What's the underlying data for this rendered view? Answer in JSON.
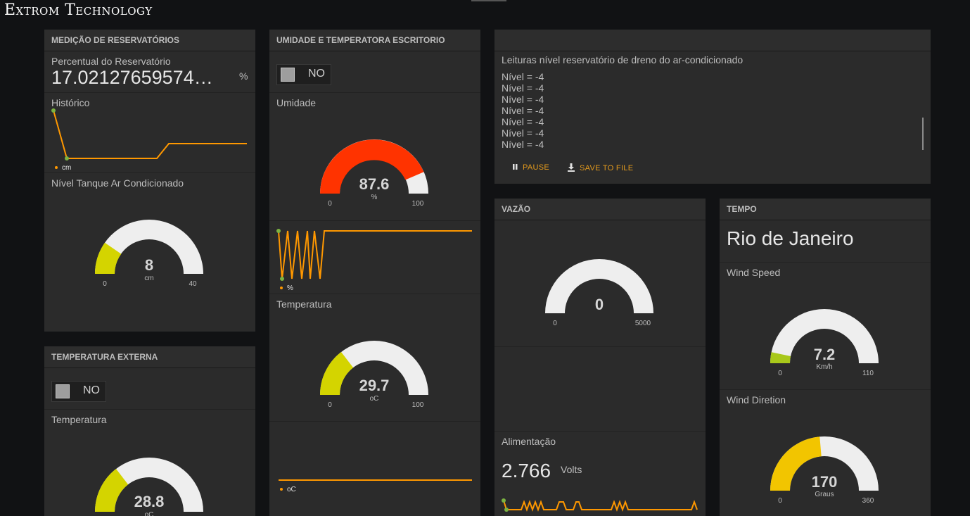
{
  "app": {
    "title": "Extrom Technology"
  },
  "colors": {
    "accent": "#ff9800",
    "red": "#ff3300",
    "yellow": "#d4d400",
    "gold": "#f2c500",
    "lime": "#a8c81a",
    "gauge_bg": "#eeeeee"
  },
  "reservatorios": {
    "header": "Medição de reservatórios",
    "percent_label": "Percentual do Reservatório",
    "percent_value": "17.02127659574…",
    "percent_unit": "%",
    "chart_label": "Histórico",
    "chart_legend": "cm",
    "gauge_label": "Nível Tanque Ar Condicionado",
    "gauge": {
      "value": "8",
      "units": "cm",
      "min": "0",
      "max": "40"
    }
  },
  "temp_externa": {
    "header": "Temperatura externa",
    "toggle_label": "NO",
    "gauge_label": "Temperatura",
    "gauge": {
      "value": "28.8",
      "units": "oC",
      "min": "0",
      "max": "100"
    }
  },
  "escritorio": {
    "header": "Umidade e temperatora escritorio",
    "toggle_label": "NO",
    "umidade_label": "Umidade",
    "umidade_gauge": {
      "value": "87.6",
      "units": "%",
      "min": "0",
      "max": "100"
    },
    "umidade_legend": "%",
    "temp_label": "Temperatura",
    "temp_gauge": {
      "value": "29.7",
      "units": "oC",
      "min": "0",
      "max": "100"
    },
    "temp_legend": "oC"
  },
  "log": {
    "title": "Leituras nível reservatório de dreno do ar-condicionado",
    "lines": [
      "Nível = -4",
      "Nível = -4",
      "Nível = -4",
      "Nível = -4",
      "Nível = -4",
      "Nível = -4",
      "Nível = -4"
    ],
    "pause_label": "Pause",
    "save_label": "Save to file"
  },
  "vazao": {
    "header": "Vazão",
    "gauge": {
      "value": "0",
      "min": "0",
      "max": "5000"
    },
    "alim_label": "Alimentação",
    "alim_value": "2.766",
    "alim_unit": "Volts"
  },
  "tempo": {
    "header": "Tempo",
    "city": "Rio de Janeiro",
    "wind_speed_label": "Wind Speed",
    "wind_speed_gauge": {
      "value": "7.2",
      "units": "Km/h",
      "min": "0",
      "max": "110"
    },
    "wind_dir_label": "Wind Diretion",
    "wind_dir_gauge": {
      "value": "170",
      "units": "Graus",
      "min": "0",
      "max": "360"
    }
  }
}
